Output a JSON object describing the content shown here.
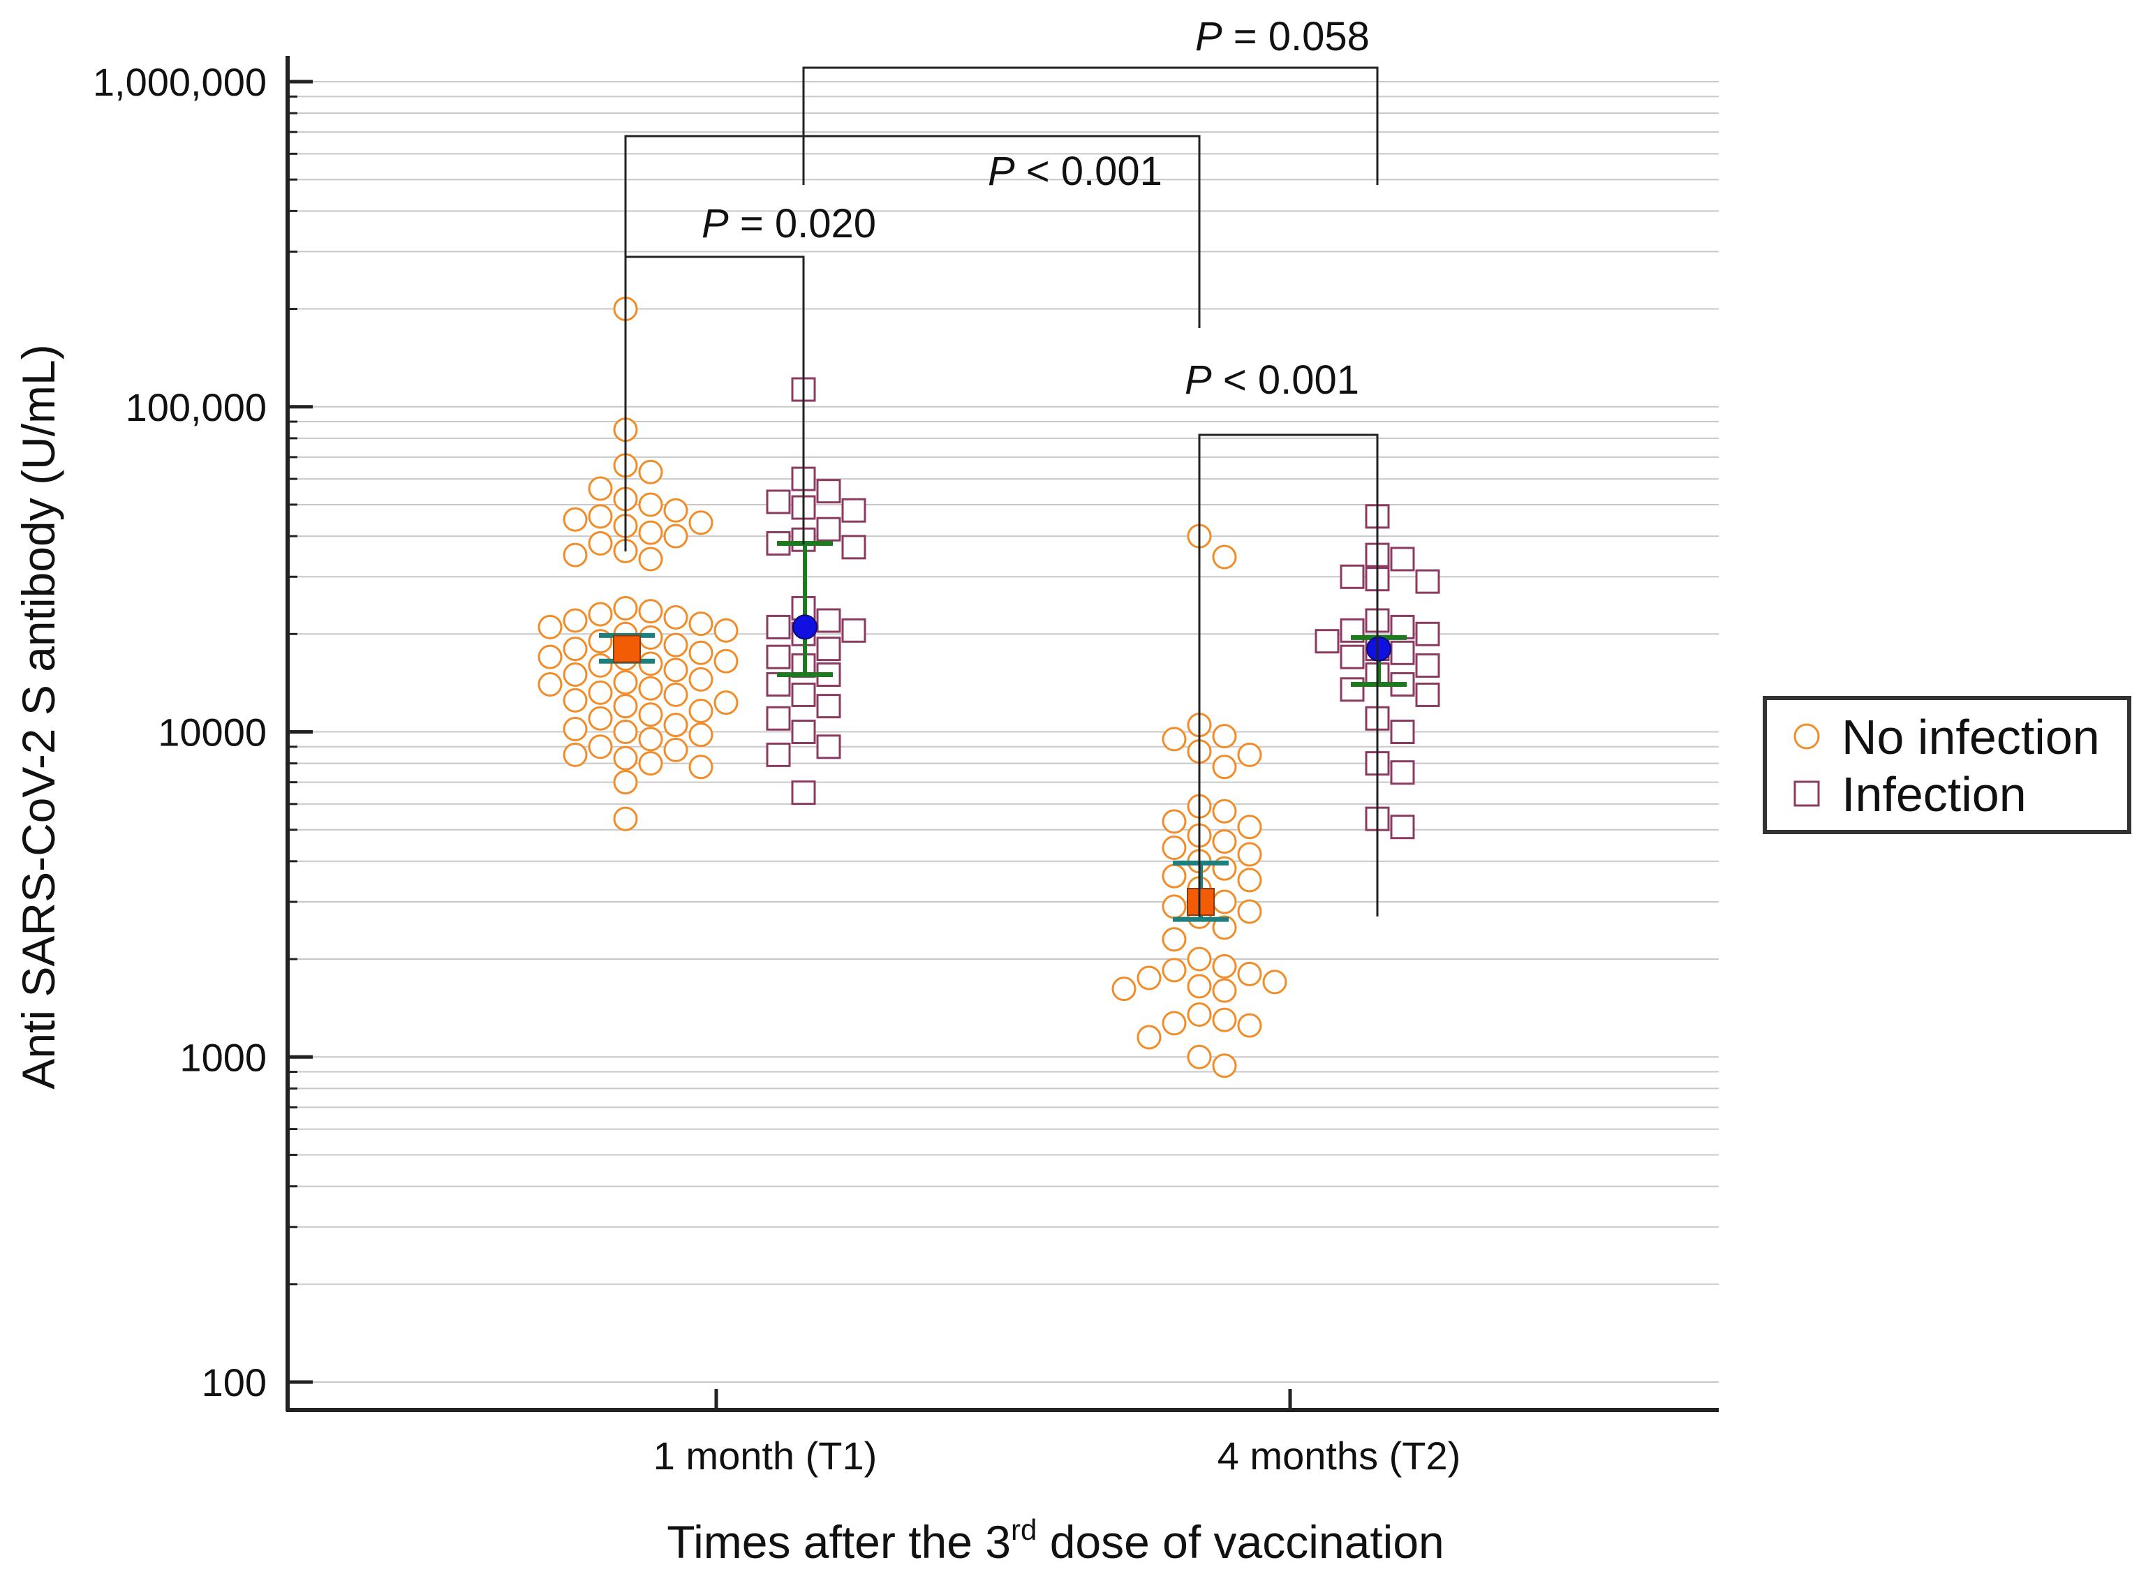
{
  "chart_data": {
    "type": "scatter",
    "xlabel": {
      "prefix": "Times after the 3",
      "sup": "rd",
      "suffix": " dose of vaccination"
    },
    "ylabel": "Anti SARS-CoV-2 S antibody (U/mL)",
    "y_scale": "log",
    "ylim": [
      100,
      1000000
    ],
    "y_ticks": [
      {
        "value": 100,
        "label": "100"
      },
      {
        "value": 1000,
        "label": "1000"
      },
      {
        "value": 10000,
        "label": "10000"
      },
      {
        "value": 100000,
        "label": "100,000"
      },
      {
        "value": 1000000,
        "label": "1,000,000"
      }
    ],
    "categories": [
      "1 month (T1)",
      "4 months (T2)"
    ],
    "grid": true,
    "legend": {
      "position": "right",
      "entries": [
        {
          "name": "No infection",
          "marker": "circle",
          "color": "#F28C28"
        },
        {
          "name": "Infection",
          "marker": "square",
          "color": "#8B3A62"
        }
      ]
    },
    "series": [
      {
        "name": "No infection",
        "marker": "circle",
        "color": "#F28C28",
        "summary_marker_color": "#F25C05",
        "summary_bar_color": "#1E7F7F",
        "points": [
          {
            "category": "1 month (T1)",
            "values": [
              200000,
              85000,
              66000,
              63000,
              56000,
              52000,
              50000,
              48000,
              46000,
              45000,
              44000,
              43000,
              41000,
              40000,
              38000,
              36000,
              35000,
              34000,
              24000,
              23500,
              23000,
              22500,
              22000,
              21500,
              21000,
              20500,
              20000,
              19500,
              19000,
              18500,
              18000,
              17500,
              17000,
              16800,
              16500,
              16200,
              16000,
              15500,
              15000,
              14500,
              14200,
              14000,
              13600,
              13200,
              13000,
              12500,
              12300,
              12000,
              11600,
              11300,
              11000,
              10500,
              10200,
              10000,
              9800,
              9500,
              9000,
              8800,
              8500,
              8300,
              8000,
              7800,
              7000,
              5400
            ],
            "mean": 18000,
            "ci": [
              16500,
              19800
            ]
          },
          {
            "category": "4 months (T2)",
            "values": [
              40000,
              34500,
              10500,
              9700,
              9500,
              8700,
              8500,
              7800,
              5900,
              5700,
              5300,
              5100,
              4800,
              4600,
              4400,
              4200,
              4000,
              3800,
              3600,
              3500,
              3300,
              3000,
              2900,
              2800,
              2700,
              2500,
              2300,
              2000,
              1900,
              1850,
              1800,
              1750,
              1700,
              1650,
              1620,
              1600,
              1350,
              1300,
              1270,
              1250,
              1150,
              1000,
              940
            ],
            "mean": 3000,
            "ci": [
              2650,
              3950
            ]
          }
        ]
      },
      {
        "name": "Infection",
        "marker": "square",
        "color": "#8B3A62",
        "summary_marker_color": "#1010E0",
        "summary_bar_color": "#1E7A1E",
        "points": [
          {
            "category": "1 month (T1)",
            "values": [
              113000,
              60000,
              55000,
              51000,
              49000,
              48000,
              42000,
              39000,
              38000,
              37000,
              24000,
              22000,
              21000,
              20500,
              20000,
              18000,
              17000,
              16000,
              15000,
              14000,
              13000,
              12000,
              11000,
              10000,
              9000,
              8500,
              6500
            ],
            "mean": 21000,
            "ci": [
              15000,
              38000
            ]
          },
          {
            "category": "4 months (T2)",
            "values": [
              46000,
              35000,
              34000,
              30000,
              29500,
              29000,
              22000,
              21000,
              20500,
              20000,
              19000,
              18000,
              17500,
              17000,
              16000,
              15000,
              14000,
              13500,
              13000,
              11000,
              10000,
              8000,
              7500,
              5400,
              5100
            ],
            "mean": 18000,
            "ci": [
              14000,
              19500
            ]
          }
        ]
      }
    ],
    "comparisons": [
      {
        "label": "P",
        "relation": " = 0.020",
        "between": [
          "1 month (T1) / No infection",
          "1 month (T1) / Infection"
        ]
      },
      {
        "label": "P",
        "relation": " < 0.001",
        "between": [
          "4 months (T2) / No infection",
          "4 months (T2) / Infection"
        ]
      },
      {
        "label": "P",
        "relation": " < 0.001",
        "between": [
          "1 month (T1) / No infection",
          "4 months (T2) / No infection"
        ]
      },
      {
        "label": "P",
        "relation": " = 0.058",
        "between": [
          "1 month (T1) / Infection",
          "4 months (T2) / Infection"
        ]
      }
    ]
  }
}
